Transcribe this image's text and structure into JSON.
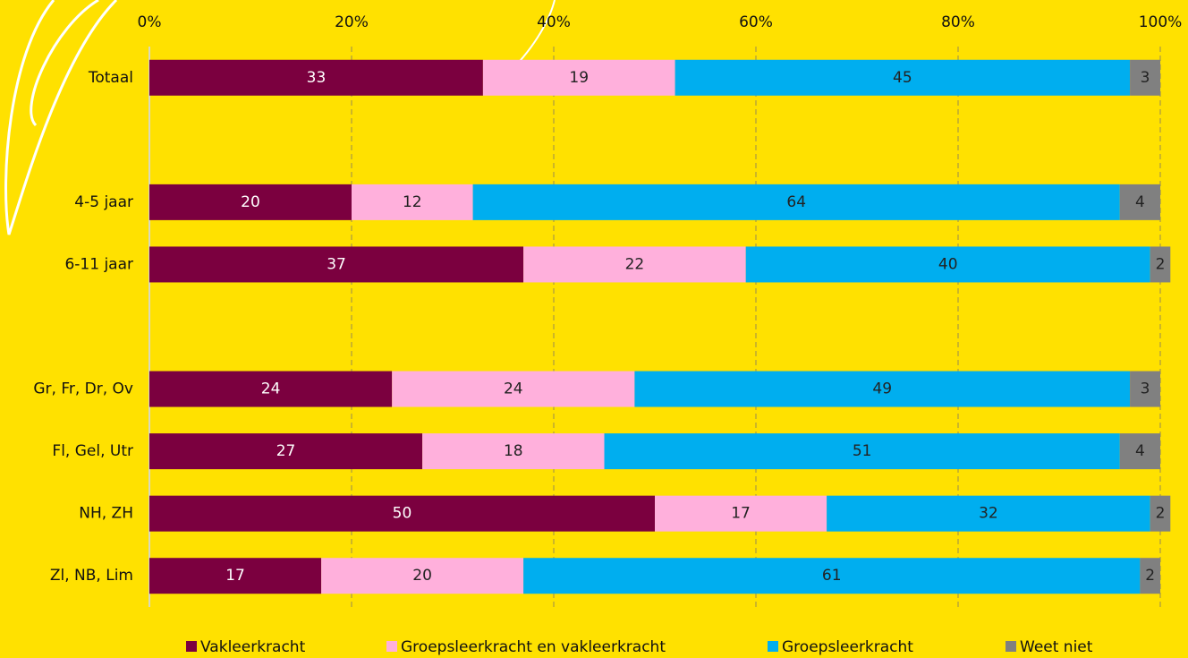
{
  "chart_data": {
    "type": "stacked_bar_horizontal",
    "categories": [
      "Totaal",
      null,
      "4-5 jaar",
      "6-11 jaar",
      null,
      "Gr, Fr, Dr, Ov",
      "Fl, Gel, Utr",
      "NH, ZH",
      "Zl, NB, Lim"
    ],
    "series": [
      {
        "name": "Vakleerkracht",
        "color": "#7b003f",
        "values": [
          33,
          null,
          20,
          37,
          null,
          24,
          27,
          50,
          17
        ]
      },
      {
        "name": "Groepsleerkracht en vakleerkracht",
        "color": "#ffb0dc",
        "values": [
          19,
          null,
          12,
          22,
          null,
          24,
          18,
          17,
          20
        ]
      },
      {
        "name": "Groepsleerkracht",
        "color": "#00aeef",
        "values": [
          45,
          null,
          64,
          40,
          null,
          49,
          51,
          32,
          61
        ]
      },
      {
        "name": "Weet niet",
        "color": "#808080",
        "values": [
          3,
          null,
          4,
          2,
          null,
          3,
          4,
          2,
          2
        ]
      }
    ],
    "xlim": [
      0,
      100
    ],
    "xticks": [
      {
        "value": 0,
        "label": "0%"
      },
      {
        "value": 20,
        "label": "20%"
      },
      {
        "value": 40,
        "label": "40%"
      },
      {
        "value": 60,
        "label": "60%"
      },
      {
        "value": 80,
        "label": "80%"
      },
      {
        "value": 100,
        "label": "100%"
      }
    ],
    "grid": true,
    "legend": "bottom"
  }
}
